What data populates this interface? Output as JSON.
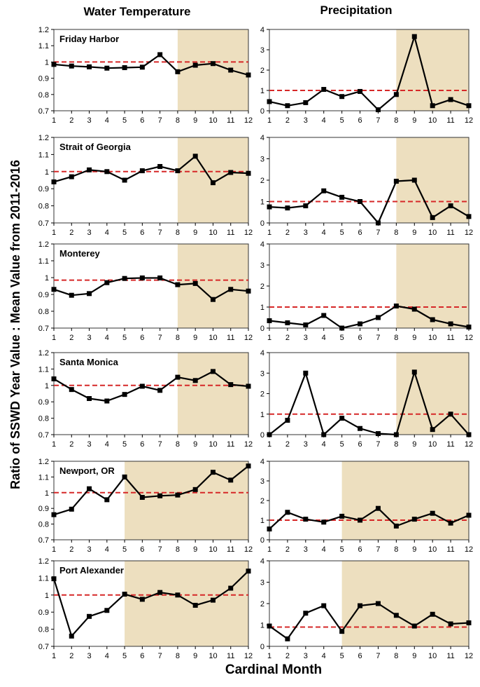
{
  "figure": {
    "column_titles": [
      "Water Temperature",
      "Precipitation"
    ],
    "ylabel": "Ratio of SSWD Year Value : Mean Value from 2011-2016",
    "xlabel": "Cardinal Month"
  },
  "colors": {
    "shade": "#eddfbf",
    "reference_line": "#d62828",
    "series": "#000000",
    "axis": "#000000"
  },
  "chart_data": [
    {
      "type": "line",
      "site": "Friday Harbor",
      "variable": "Water Temperature",
      "x": [
        1,
        2,
        3,
        4,
        5,
        6,
        7,
        8,
        9,
        10,
        11,
        12
      ],
      "values": [
        0.985,
        0.975,
        0.97,
        0.962,
        0.965,
        0.968,
        1.045,
        0.94,
        0.98,
        0.99,
        0.95,
        0.92
      ],
      "ylim": [
        0.7,
        1.2
      ],
      "yticks": [
        "0.7",
        "0.8",
        "0.9",
        "1",
        "1.1",
        "1.2"
      ],
      "reference": 1.0,
      "shade_months": [
        8,
        12
      ]
    },
    {
      "type": "line",
      "site": "Friday Harbor",
      "variable": "Precipitation",
      "x": [
        1,
        2,
        3,
        4,
        5,
        6,
        7,
        8,
        9,
        10,
        11,
        12
      ],
      "values": [
        0.45,
        0.25,
        0.4,
        1.05,
        0.7,
        0.95,
        0.05,
        0.8,
        3.65,
        0.25,
        0.55,
        0.25
      ],
      "ylim": [
        0,
        4
      ],
      "yticks": [
        "0",
        "1",
        "2",
        "3",
        "4"
      ],
      "reference": 1.0,
      "shade_months": [
        8,
        12
      ]
    },
    {
      "type": "line",
      "site": "Strait of Georgia",
      "variable": "Water Temperature",
      "x": [
        1,
        2,
        3,
        4,
        5,
        6,
        7,
        8,
        9,
        10,
        11,
        12
      ],
      "values": [
        0.94,
        0.97,
        1.01,
        1.0,
        0.95,
        1.005,
        1.03,
        1.005,
        1.09,
        0.935,
        0.995,
        0.99
      ],
      "ylim": [
        0.7,
        1.2
      ],
      "yticks": [
        "0.7",
        "0.8",
        "0.9",
        "1",
        "1.1",
        "1.2"
      ],
      "reference": 1.0,
      "shade_months": [
        8,
        12
      ]
    },
    {
      "type": "line",
      "site": "Strait of Georgia",
      "variable": "Precipitation",
      "x": [
        1,
        2,
        3,
        4,
        5,
        6,
        7,
        8,
        9,
        10,
        11,
        12
      ],
      "values": [
        0.75,
        0.7,
        0.8,
        1.5,
        1.2,
        1.0,
        0.0,
        1.95,
        2.0,
        0.25,
        0.8,
        0.3
      ],
      "ylim": [
        0,
        4
      ],
      "yticks": [
        "0",
        "1",
        "2",
        "3",
        "4"
      ],
      "reference": 1.0,
      "shade_months": [
        8,
        12
      ]
    },
    {
      "type": "line",
      "site": "Monterey",
      "variable": "Water Temperature",
      "x": [
        1,
        2,
        3,
        4,
        5,
        6,
        7,
        8,
        9,
        10,
        11,
        12
      ],
      "values": [
        0.93,
        0.895,
        0.905,
        0.97,
        0.995,
        0.998,
        0.998,
        0.958,
        0.965,
        0.87,
        0.93,
        0.92
      ],
      "ylim": [
        0.7,
        1.2
      ],
      "yticks": [
        "0.7",
        "0.8",
        "0.9",
        "1",
        "1.1",
        "1.2"
      ],
      "reference": 0.985,
      "shade_months": [
        8,
        12
      ]
    },
    {
      "type": "line",
      "site": "Monterey",
      "variable": "Precipitation",
      "x": [
        1,
        2,
        3,
        4,
        5,
        6,
        7,
        8,
        9,
        10,
        11,
        12
      ],
      "values": [
        0.35,
        0.25,
        0.15,
        0.6,
        0.0,
        0.2,
        0.5,
        1.05,
        0.9,
        0.4,
        0.2,
        0.05
      ],
      "ylim": [
        0,
        4
      ],
      "yticks": [
        "0",
        "1",
        "2",
        "3",
        "4"
      ],
      "reference": 1.0,
      "shade_months": [
        8,
        12
      ]
    },
    {
      "type": "line",
      "site": "Santa Monica",
      "variable": "Water Temperature",
      "x": [
        1,
        2,
        3,
        4,
        5,
        6,
        7,
        8,
        9,
        10,
        11,
        12
      ],
      "values": [
        1.04,
        0.975,
        0.92,
        0.905,
        0.945,
        0.995,
        0.97,
        1.05,
        1.03,
        1.085,
        1.005,
        0.995
      ],
      "ylim": [
        0.7,
        1.2
      ],
      "yticks": [
        "0.7",
        "0.8",
        "0.9",
        "1",
        "1.1",
        "1.2"
      ],
      "reference": 1.0,
      "shade_months": [
        8,
        12
      ]
    },
    {
      "type": "line",
      "site": "Santa Monica",
      "variable": "Precipitation",
      "x": [
        1,
        2,
        3,
        4,
        5,
        6,
        7,
        8,
        9,
        10,
        11,
        12
      ],
      "values": [
        0.0,
        0.7,
        3.0,
        0.0,
        0.8,
        0.3,
        0.05,
        0.0,
        3.05,
        0.25,
        1.0,
        0.0
      ],
      "ylim": [
        0,
        4
      ],
      "yticks": [
        "0",
        "1",
        "2",
        "3",
        "4"
      ],
      "reference": 1.0,
      "shade_months": [
        8,
        12
      ]
    },
    {
      "type": "line",
      "site": "Newport, OR",
      "variable": "Water Temperature",
      "x": [
        1,
        2,
        3,
        4,
        5,
        6,
        7,
        8,
        9,
        10,
        11,
        12
      ],
      "values": [
        0.86,
        0.895,
        1.025,
        0.955,
        1.1,
        0.97,
        0.98,
        0.985,
        1.02,
        1.13,
        1.08,
        1.17
      ],
      "ylim": [
        0.7,
        1.2
      ],
      "yticks": [
        "0.7",
        "0.8",
        "0.9",
        "1",
        "1.1",
        "1.2"
      ],
      "reference": 1.0,
      "shade_months": [
        5,
        12
      ]
    },
    {
      "type": "line",
      "site": "Newport, OR",
      "variable": "Precipitation",
      "x": [
        1,
        2,
        3,
        4,
        5,
        6,
        7,
        8,
        9,
        10,
        11,
        12
      ],
      "values": [
        0.55,
        1.4,
        1.05,
        0.9,
        1.2,
        1.0,
        1.6,
        0.7,
        1.05,
        1.35,
        0.85,
        1.25
      ],
      "ylim": [
        0,
        4
      ],
      "yticks": [
        "0",
        "1",
        "2",
        "3",
        "4"
      ],
      "reference": 1.0,
      "shade_months": [
        5,
        12
      ]
    },
    {
      "type": "line",
      "site": "Port Alexander",
      "variable": "Water Temperature",
      "x": [
        1,
        2,
        3,
        4,
        5,
        6,
        7,
        8,
        9,
        10,
        11,
        12
      ],
      "values": [
        1.095,
        0.76,
        0.875,
        0.91,
        1.005,
        0.975,
        1.015,
        1.0,
        0.94,
        0.97,
        1.04,
        1.14
      ],
      "ylim": [
        0.7,
        1.2
      ],
      "yticks": [
        "0.7",
        "0.8",
        "0.9",
        "1",
        "1.1",
        "1.2"
      ],
      "reference": 1.0,
      "shade_months": [
        5,
        12
      ]
    },
    {
      "type": "line",
      "site": "Port Alexander",
      "variable": "Precipitation",
      "x": [
        1,
        2,
        3,
        4,
        5,
        6,
        7,
        8,
        9,
        10,
        11,
        12
      ],
      "values": [
        0.95,
        0.35,
        1.55,
        1.9,
        0.7,
        1.9,
        2.0,
        1.45,
        0.95,
        1.5,
        1.05,
        1.1
      ],
      "ylim": [
        0,
        4
      ],
      "yticks": [
        "0",
        "1",
        "2",
        "3",
        "4"
      ],
      "reference": 0.9,
      "shade_months": [
        5,
        12
      ]
    }
  ]
}
